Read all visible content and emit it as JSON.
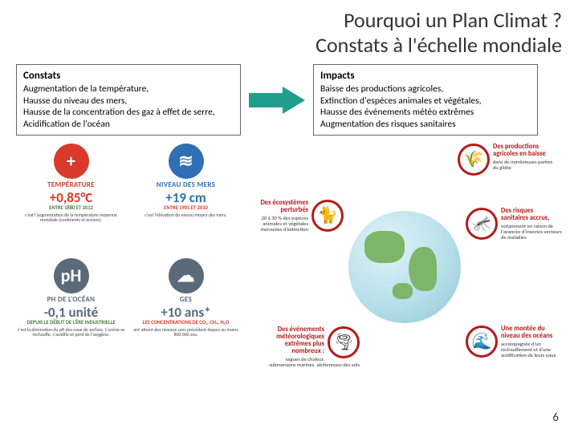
{
  "title_line1": "Pourquoi un Plan Climat ?",
  "title_line2": "Constats à l'échelle mondiale",
  "constats": {
    "title": "Constats",
    "lines": [
      "Augmentation de la température,",
      "Hausse du niveau des mers,",
      "Hausse de la concentration des gaz à effet de serre,",
      "Acidification de l'océan"
    ]
  },
  "impacts": {
    "title": "Impacts",
    "lines": [
      "Baisse des productions agricoles,",
      "Extinction d'espèces animales et végétales,",
      "Hausse des événements météo extrêmes",
      "Augmentation des risques sanitaires"
    ]
  },
  "arrow_color": "#1f9e8e",
  "info_cells": [
    {
      "key": "temp",
      "icon_bg": "#d93a2b",
      "icon_txt": "+",
      "label": "TEMPÉRATURE",
      "label_color": "#d93a2b",
      "val": "+0,85°C",
      "val_color": "#d93a2b",
      "sub": "ENTRE 1880 ET 2012",
      "sub_color": "#4a7a3f",
      "desc": "c'est l'augmentation de la température moyenne mondiale (continents et océans)."
    },
    {
      "key": "mer",
      "icon_bg": "#2f6fb3",
      "icon_txt": "≋",
      "label": "NIVEAU DES MERS",
      "label_color": "#2f6fb3",
      "val": "+19 cm",
      "val_color": "#2f6fb3",
      "sub": "ENTRE 1901 ET 2010",
      "sub_color": "#d93a2b",
      "desc": "c'est l'élévation du niveau moyen des mers."
    },
    {
      "key": "ph",
      "icon_bg": "#5a6a78",
      "icon_txt": "pH",
      "label": "PH DE L'OCÉAN",
      "label_color": "#5a6a78",
      "val": "-0,1 unité",
      "val_color": "#5a6a78",
      "sub": "DEPUIS LE DÉBUT DE L'ÈRE INDUSTRIELLE",
      "sub_color": "#4a7a3f",
      "desc": "c'est la diminution du pH des eaux de surface. L'océan se réchauffe, s'acidifie et perd de l'oxygène."
    },
    {
      "key": "ges",
      "icon_bg": "#5a6a78",
      "icon_txt": "☁",
      "label": "GES",
      "label_color": "#5a6a78",
      "val": "+10 ans*",
      "val_color": "#5a6a78",
      "sub": "LES CONCENTRATIONS DE CO₂, CH₄, N₂O",
      "sub_color": "#d93a2b",
      "desc": "ont atteint des niveaux sans précédent depuis au moins 800 000 ans."
    }
  ],
  "callouts": [
    {
      "pos": "top-right",
      "icon": "🌾",
      "title": "Des productions agricoles en baisse",
      "body": "dans de nombreuses parties du globe"
    },
    {
      "pos": "left-mid",
      "icon": "🐈",
      "title": "Des écosystèmes perturbés",
      "body": "20 à 30 % des espèces animales et végétales menacées d'extinction"
    },
    {
      "pos": "right-mid",
      "icon": "🦟",
      "title": "Des risques sanitaires accrus,",
      "body": "notamment en raison de l'avancée d'insectes vecteurs de maladies"
    },
    {
      "pos": "bottom-left",
      "icon": "🌪",
      "title": "Des événements météorologiques extrêmes plus nombreux :",
      "body": "vagues de chaleur, submersions marines, sécheresses des sols"
    },
    {
      "pos": "bottom-right",
      "icon": "🌊",
      "title": "Une montée du niveau des océans",
      "body": "accompagnée d'un réchauffement et d'une acidification de leurs eaux"
    }
  ],
  "callout_ring": "#b31b1b",
  "page_number": "6"
}
